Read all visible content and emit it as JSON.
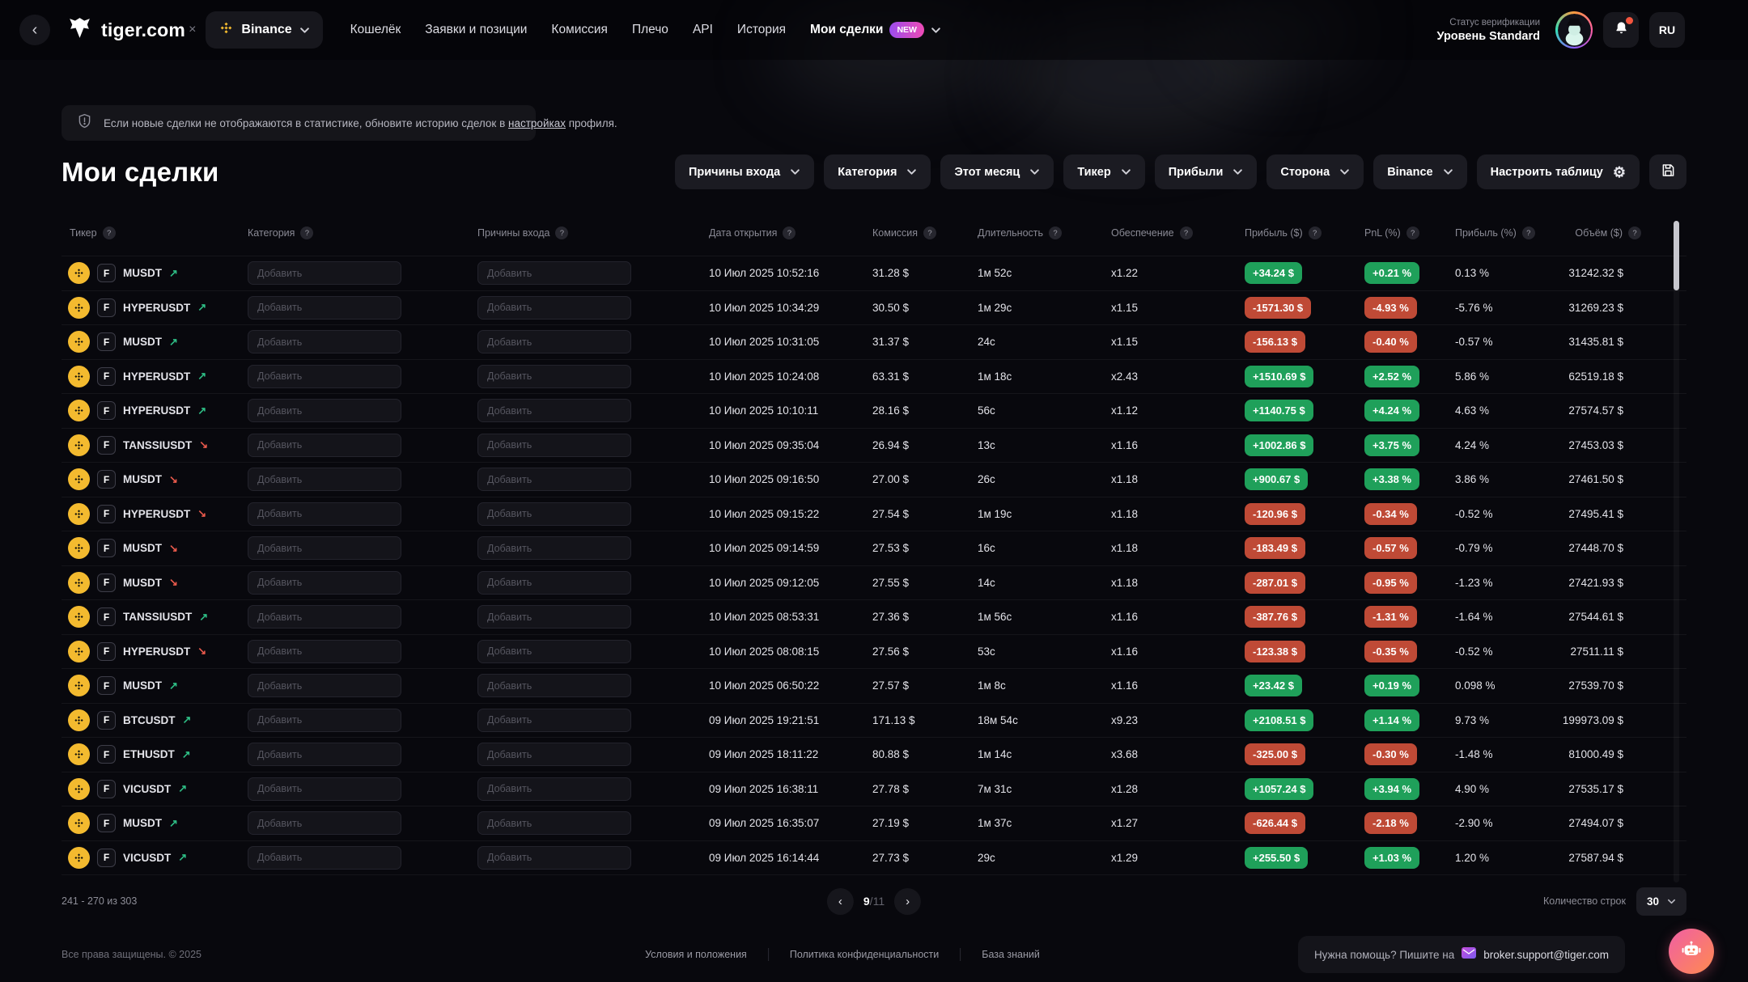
{
  "topbar": {
    "brand": "tiger.com",
    "brand_separator": "×",
    "exchange_label": "Binance",
    "nav": [
      {
        "label": "Кошелёк"
      },
      {
        "label": "Заявки и позиции"
      },
      {
        "label": "Комиссия"
      },
      {
        "label": "Плечо"
      },
      {
        "label": "API"
      },
      {
        "label": "История"
      },
      {
        "label": "Мои сделки",
        "badge": "NEW",
        "active": true,
        "caret": true
      }
    ],
    "verification_line1": "Статус верификации",
    "verification_line2": "Уровень Standard",
    "lang": "RU"
  },
  "notice": {
    "text_before": "Если новые сделки не отображаются в статистике, обновите историю сделок в",
    "link": "настройках",
    "text_after": "профиля."
  },
  "page": {
    "title": "Мои сделки"
  },
  "filters": {
    "dropdowns": [
      "Причины входа",
      "Категория",
      "Этот месяц",
      "Тикер",
      "Прибыли",
      "Сторона",
      "Binance"
    ],
    "configure_label": "Настроить таблицу"
  },
  "table": {
    "add_placeholder": "Добавить",
    "headers": [
      "Тикер",
      "Категория",
      "Причины входа",
      "Дата открытия",
      "Комиссия",
      "Длительность",
      "Обеспечение",
      "Прибыль ($)",
      "PnL (%)",
      "Прибыль (%)",
      "Объём ($)"
    ],
    "rows": [
      {
        "ticker": "MUSDT",
        "dir": "up",
        "date": "10 Июл 2025 10:52:16",
        "commission": "31.28 $",
        "duration": "1м 52с",
        "leverage": "x1.22",
        "profit_usd": "+34.24 $",
        "profit_sign": "pos",
        "pnl": "+0.21 %",
        "profit_pct": "0.13 %",
        "volume": "31242.32 $"
      },
      {
        "ticker": "HYPERUSDT",
        "dir": "up",
        "date": "10 Июл 2025 10:34:29",
        "commission": "30.50 $",
        "duration": "1м 29с",
        "leverage": "x1.15",
        "profit_usd": "-1571.30 $",
        "profit_sign": "neg",
        "pnl": "-4.93 %",
        "profit_pct": "-5.76 %",
        "volume": "31269.23 $"
      },
      {
        "ticker": "MUSDT",
        "dir": "up",
        "date": "10 Июл 2025 10:31:05",
        "commission": "31.37 $",
        "duration": "24с",
        "leverage": "x1.15",
        "profit_usd": "-156.13 $",
        "profit_sign": "neg",
        "pnl": "-0.40 %",
        "profit_pct": "-0.57 %",
        "volume": "31435.81 $"
      },
      {
        "ticker": "HYPERUSDT",
        "dir": "up",
        "date": "10 Июл 2025 10:24:08",
        "commission": "63.31 $",
        "duration": "1м 18с",
        "leverage": "x2.43",
        "profit_usd": "+1510.69 $",
        "profit_sign": "pos",
        "pnl": "+2.52 %",
        "profit_pct": "5.86 %",
        "volume": "62519.18 $"
      },
      {
        "ticker": "HYPERUSDT",
        "dir": "up",
        "date": "10 Июл 2025 10:10:11",
        "commission": "28.16 $",
        "duration": "56с",
        "leverage": "x1.12",
        "profit_usd": "+1140.75 $",
        "profit_sign": "pos",
        "pnl": "+4.24 %",
        "profit_pct": "4.63 %",
        "volume": "27574.57 $"
      },
      {
        "ticker": "TANSSIUSDT",
        "dir": "down",
        "date": "10 Июл 2025 09:35:04",
        "commission": "26.94 $",
        "duration": "13с",
        "leverage": "x1.16",
        "profit_usd": "+1002.86 $",
        "profit_sign": "pos",
        "pnl": "+3.75 %",
        "profit_pct": "4.24 %",
        "volume": "27453.03 $"
      },
      {
        "ticker": "MUSDT",
        "dir": "down",
        "date": "10 Июл 2025 09:16:50",
        "commission": "27.00 $",
        "duration": "26с",
        "leverage": "x1.18",
        "profit_usd": "+900.67 $",
        "profit_sign": "pos",
        "pnl": "+3.38 %",
        "profit_pct": "3.86 %",
        "volume": "27461.50 $"
      },
      {
        "ticker": "HYPERUSDT",
        "dir": "down",
        "date": "10 Июл 2025 09:15:22",
        "commission": "27.54 $",
        "duration": "1м 19с",
        "leverage": "x1.18",
        "profit_usd": "-120.96 $",
        "profit_sign": "neg",
        "pnl": "-0.34 %",
        "profit_pct": "-0.52 %",
        "volume": "27495.41 $"
      },
      {
        "ticker": "MUSDT",
        "dir": "down",
        "date": "10 Июл 2025 09:14:59",
        "commission": "27.53 $",
        "duration": "16с",
        "leverage": "x1.18",
        "profit_usd": "-183.49 $",
        "profit_sign": "neg",
        "pnl": "-0.57 %",
        "profit_pct": "-0.79 %",
        "volume": "27448.70 $"
      },
      {
        "ticker": "MUSDT",
        "dir": "down",
        "date": "10 Июл 2025 09:12:05",
        "commission": "27.55 $",
        "duration": "14с",
        "leverage": "x1.18",
        "profit_usd": "-287.01 $",
        "profit_sign": "neg",
        "pnl": "-0.95 %",
        "profit_pct": "-1.23 %",
        "volume": "27421.93 $"
      },
      {
        "ticker": "TANSSIUSDT",
        "dir": "up",
        "date": "10 Июл 2025 08:53:31",
        "commission": "27.36 $",
        "duration": "1м 56с",
        "leverage": "x1.16",
        "profit_usd": "-387.76 $",
        "profit_sign": "neg",
        "pnl": "-1.31 %",
        "profit_pct": "-1.64 %",
        "volume": "27544.61 $"
      },
      {
        "ticker": "HYPERUSDT",
        "dir": "down",
        "date": "10 Июл 2025 08:08:15",
        "commission": "27.56 $",
        "duration": "53с",
        "leverage": "x1.16",
        "profit_usd": "-123.38 $",
        "profit_sign": "neg",
        "pnl": "-0.35 %",
        "profit_pct": "-0.52 %",
        "volume": "27511.11 $"
      },
      {
        "ticker": "MUSDT",
        "dir": "up",
        "date": "10 Июл 2025 06:50:22",
        "commission": "27.57 $",
        "duration": "1м 8с",
        "leverage": "x1.16",
        "profit_usd": "+23.42 $",
        "profit_sign": "pos",
        "pnl": "+0.19 %",
        "profit_pct": "0.098 %",
        "volume": "27539.70 $"
      },
      {
        "ticker": "BTCUSDT",
        "dir": "up",
        "date": "09 Июл 2025 19:21:51",
        "commission": "171.13 $",
        "duration": "18м 54с",
        "leverage": "x9.23",
        "profit_usd": "+2108.51 $",
        "profit_sign": "pos",
        "pnl": "+1.14 %",
        "profit_pct": "9.73 %",
        "volume": "199973.09 $"
      },
      {
        "ticker": "ETHUSDT",
        "dir": "up",
        "date": "09 Июл 2025 18:11:22",
        "commission": "80.88 $",
        "duration": "1м 14с",
        "leverage": "x3.68",
        "profit_usd": "-325.00 $",
        "profit_sign": "neg",
        "pnl": "-0.30 %",
        "profit_pct": "-1.48 %",
        "volume": "81000.49 $"
      },
      {
        "ticker": "VICUSDT",
        "dir": "up",
        "date": "09 Июл 2025 16:38:11",
        "commission": "27.78 $",
        "duration": "7м 31с",
        "leverage": "x1.28",
        "profit_usd": "+1057.24 $",
        "profit_sign": "pos",
        "pnl": "+3.94 %",
        "profit_pct": "4.90 %",
        "volume": "27535.17 $"
      },
      {
        "ticker": "MUSDT",
        "dir": "up",
        "date": "09 Июл 2025 16:35:07",
        "commission": "27.19 $",
        "duration": "1м 37с",
        "leverage": "x1.27",
        "profit_usd": "-626.44 $",
        "profit_sign": "neg",
        "pnl": "-2.18 %",
        "profit_pct": "-2.90 %",
        "volume": "27494.07 $"
      },
      {
        "ticker": "VICUSDT",
        "dir": "up",
        "date": "09 Июл 2025 16:14:44",
        "commission": "27.73 $",
        "duration": "29с",
        "leverage": "x1.29",
        "profit_usd": "+255.50 $",
        "profit_sign": "pos",
        "pnl": "+1.03 %",
        "profit_pct": "1.20 %",
        "volume": "27587.94 $"
      }
    ]
  },
  "pagination": {
    "range": "241 - 270 из 303",
    "current_page": "9",
    "total_pages": "/11",
    "rows_label": "Количество строк",
    "rows_value": "30"
  },
  "footer": {
    "copyright": "Все права защищены. © 2025",
    "links": [
      "Условия и положения",
      "Политика конфиденциальности",
      "База знаний"
    ],
    "support_text": "Нужна помощь? Пишите на",
    "support_email": "broker.support@tiger.com"
  },
  "icons": {
    "back": "‹",
    "close_x": "×",
    "gear": "⚙",
    "help": "?",
    "trend_up": "↗",
    "trend_down": "↘",
    "prev": "‹",
    "next": "›"
  },
  "colors": {
    "accent_green": "#1fa05a",
    "accent_red": "#bf4a36",
    "binance_yellow": "#f3ba2f",
    "new_badge_gradient": [
      "#9b4dee",
      "#ee4bb5"
    ],
    "background": "#08080d"
  }
}
